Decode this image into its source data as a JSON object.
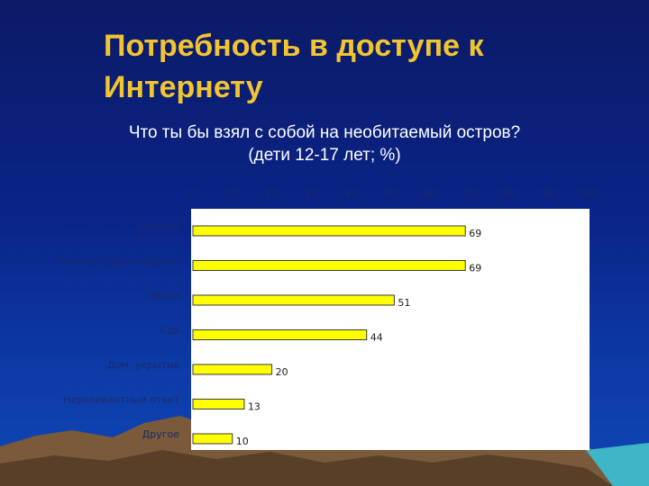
{
  "slide": {
    "title_line1": "Потребность в доступе к",
    "title_line2": "Интернету"
  },
  "chart_data": {
    "type": "bar",
    "orientation": "horizontal",
    "title": "Что ты бы взял с собой на необитаемый остров?",
    "subtitle": "(дети 12-17 лет; %)",
    "categories": [
      "Близкие",
      "Компьютер и интернет",
      "Вещи",
      "Еда",
      "Дом, укрытие",
      "Нерелевантный ответ",
      "Другое"
    ],
    "values": [
      69,
      69,
      51,
      44,
      20,
      13,
      10
    ],
    "x_ticks": [
      0,
      10,
      20,
      30,
      40,
      50,
      60,
      70,
      80,
      90,
      100
    ],
    "xlim": [
      0,
      100
    ],
    "axis_position": "top",
    "grid": false,
    "legend": "none",
    "colors": {
      "bar": "#ffff00",
      "bar_outline": "#3a3a3a",
      "plot_background": "#ffffff",
      "tick_label": "#1c2a66",
      "data_label": "#1a1a1a",
      "title": "#f2c530",
      "text": "#ffffff"
    }
  }
}
